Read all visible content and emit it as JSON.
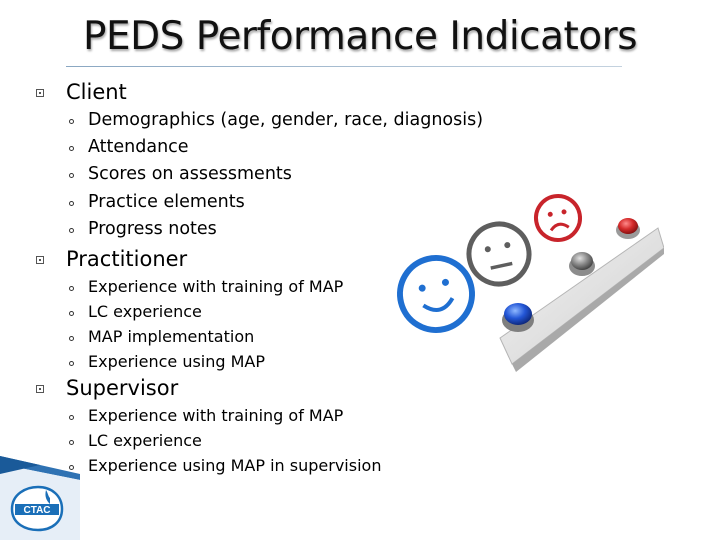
{
  "slide": {
    "title": "PEDS Performance Indicators",
    "sections": [
      {
        "heading": "Client",
        "items": [
          "Demographics (age, gender, race, diagnosis)",
          "Attendance",
          "Scores on assessments",
          "Practice elements",
          "Progress notes"
        ]
      },
      {
        "heading": "Practitioner",
        "items": [
          "Experience with training of MAP",
          "LC experience",
          "MAP implementation",
          "Experience using MAP"
        ]
      },
      {
        "heading": "Supervisor",
        "items": [
          "Experience with training of MAP",
          "LC experience",
          "Experience using MAP in supervision"
        ]
      }
    ],
    "logo": {
      "text": "CTAC"
    }
  },
  "colors": {
    "accent_blue": "#1a6fb8",
    "sad_red": "#c8242b",
    "neutral_gray": "#6b6b6b",
    "happy_blue": "#1f6fd1"
  },
  "image": {
    "icon": "satisfaction-rating-faces-with-buttons-icon"
  }
}
